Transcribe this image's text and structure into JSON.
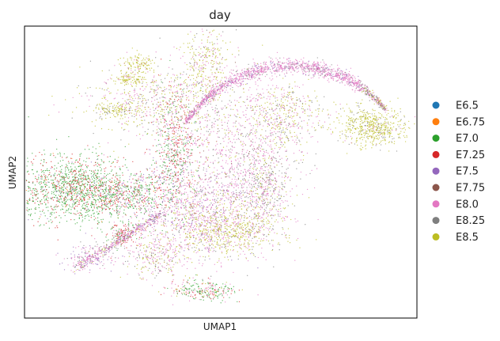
{
  "chart_data": {
    "type": "scatter",
    "title": "day",
    "xlabel": "UMAP1",
    "ylabel": "UMAP2",
    "xticks": false,
    "yticks": false,
    "grid": false,
    "legend_placement": "right",
    "series": [
      {
        "name": "E6.5",
        "color": "#1f77b4"
      },
      {
        "name": "E6.75",
        "color": "#ff7f0e"
      },
      {
        "name": "E7.0",
        "color": "#2ca02c"
      },
      {
        "name": "E7.25",
        "color": "#d62728"
      },
      {
        "name": "E7.5",
        "color": "#9467bd"
      },
      {
        "name": "E7.75",
        "color": "#8c564b"
      },
      {
        "name": "E8.0",
        "color": "#e377c2"
      },
      {
        "name": "E8.25",
        "color": "#7f7f7f"
      },
      {
        "name": "E8.5",
        "color": "#bcbd22"
      }
    ]
  }
}
